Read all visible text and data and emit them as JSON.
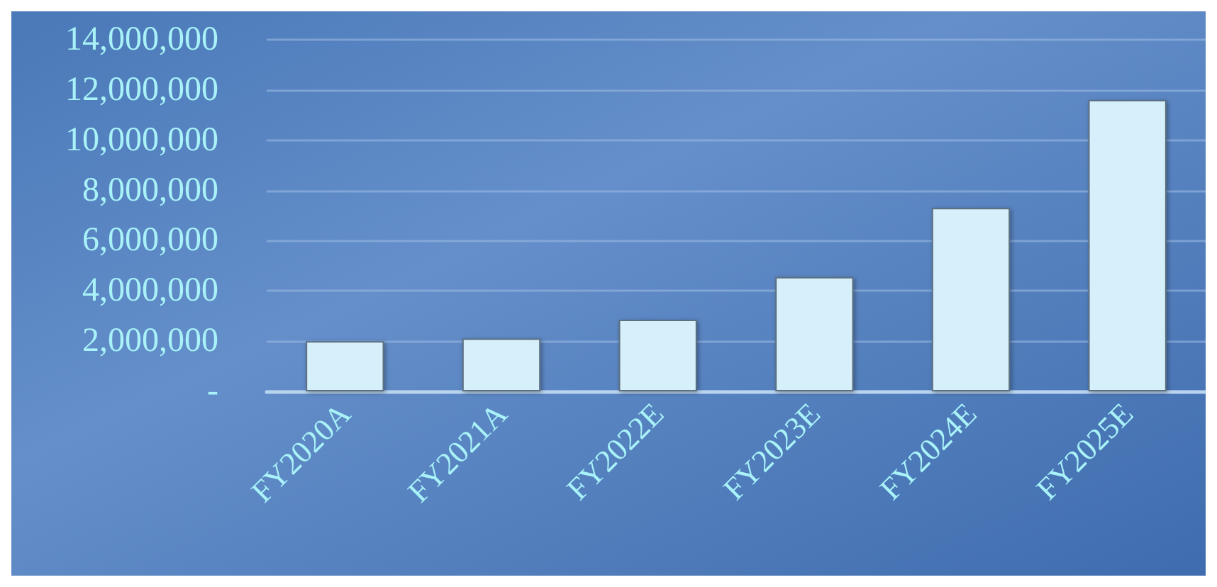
{
  "chart_data": {
    "type": "bar",
    "categories": [
      "FY2020A",
      "FY2021A",
      "FY2022E",
      "FY2023E",
      "FY2024E",
      "FY2025E"
    ],
    "values": [
      2000000,
      2100000,
      2850000,
      4550000,
      7300000,
      11600000
    ],
    "color": "#d6f0fb",
    "ylim": [
      0,
      14000000
    ],
    "yticks": [
      {
        "value": 0,
        "label": "-"
      },
      {
        "value": 2000000,
        "label": "2,000,000"
      },
      {
        "value": 4000000,
        "label": "4,000,000"
      },
      {
        "value": 6000000,
        "label": "6,000,000"
      },
      {
        "value": 8000000,
        "label": "8,000,000"
      },
      {
        "value": 10000000,
        "label": "10,000,000"
      },
      {
        "value": 12000000,
        "label": "12,000,000"
      },
      {
        "value": 14000000,
        "label": "14,000,000"
      }
    ],
    "grid": "y"
  }
}
